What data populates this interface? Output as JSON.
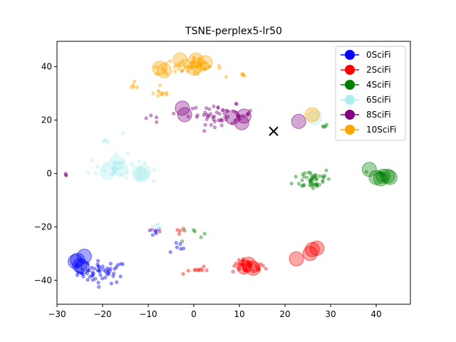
{
  "chart_data": {
    "type": "scatter",
    "title": "TSNE-perplex5-lr50",
    "xlabel": "",
    "ylabel": "",
    "xlim": [
      -30,
      47.5
    ],
    "ylim": [
      -49,
      49.5
    ],
    "xticks": [
      -30,
      -20,
      -10,
      0,
      10,
      20,
      30,
      40
    ],
    "yticks": [
      -40,
      -20,
      0,
      20,
      40
    ],
    "grid": false,
    "legend_position": "top-right",
    "series": [
      {
        "name": "0SciFi",
        "color": "#0000ff",
        "clusters": [
          {
            "center": [
              -20,
              -37
            ],
            "spread": [
              4.5,
              3.5
            ],
            "count": 55
          },
          {
            "center": [
              -9,
              -22
            ],
            "spread": [
              1.5,
              1.2
            ],
            "count": 6
          },
          {
            "center": [
              -4,
              -28
            ],
            "spread": [
              2,
              2
            ],
            "count": 6
          }
        ],
        "big_points": [
          [
            -26,
            -33
          ],
          [
            -25,
            -34.5
          ],
          [
            -24,
            -31
          ],
          [
            -24.5,
            -35
          ],
          [
            -25.5,
            -32.5
          ]
        ]
      },
      {
        "name": "2SciFi",
        "color": "#ff0000",
        "clusters": [
          {
            "center": [
              12,
              -35
            ],
            "spread": [
              3,
              2
            ],
            "count": 45
          },
          {
            "center": [
              0,
              -36
            ],
            "spread": [
              2.5,
              2
            ],
            "count": 10
          },
          {
            "center": [
              -5,
              -22
            ],
            "spread": [
              3,
              1.5
            ],
            "count": 6
          }
        ],
        "big_points": [
          [
            12,
            -34
          ],
          [
            11,
            -35
          ],
          [
            13,
            -35.5
          ],
          [
            26,
            -28.5
          ],
          [
            25.5,
            -30
          ],
          [
            27,
            -28
          ],
          [
            22.5,
            -32
          ]
        ]
      },
      {
        "name": "4SciFi",
        "color": "#008000",
        "clusters": [
          {
            "center": [
              26,
              -2
            ],
            "spread": [
              3.5,
              3.5
            ],
            "count": 45
          },
          {
            "center": [
              41,
              -0.5
            ],
            "spread": [
              1.5,
              1.5
            ],
            "count": 8
          },
          {
            "center": [
              29,
              18
            ],
            "spread": [
              0.8,
              0.5
            ],
            "count": 4
          },
          {
            "center": [
              -1,
              -22
            ],
            "spread": [
              2.5,
              2.5
            ],
            "count": 6
          }
        ],
        "big_points": [
          [
            38.5,
            1.5
          ],
          [
            40,
            -1.5
          ],
          [
            41.5,
            -1
          ],
          [
            42.5,
            -1
          ],
          [
            43,
            -1.5
          ],
          [
            41,
            -2
          ]
        ]
      },
      {
        "name": "6SciFi",
        "color": "#afeeee",
        "clusters": [
          {
            "center": [
              -17,
              2
            ],
            "spread": [
              5,
              4
            ],
            "count": 40
          },
          {
            "center": [
              -8,
              -20
            ],
            "spread": [
              2,
              1
            ],
            "count": 5
          },
          {
            "center": [
              -18,
              13
            ],
            "spread": [
              2,
              2
            ],
            "count": 5
          }
        ],
        "big_points": [
          [
            -17,
            4
          ],
          [
            -16,
            1.5
          ],
          [
            -19,
            0.5
          ],
          [
            -12,
            0
          ],
          [
            -11.5,
            -0.5
          ],
          [
            -11,
            0.5
          ],
          [
            26.5,
            21
          ]
        ]
      },
      {
        "name": "8SciFi",
        "color": "#800080",
        "clusters": [
          {
            "center": [
              6,
              22
            ],
            "spread": [
              6,
              3
            ],
            "count": 55
          },
          {
            "center": [
              -28,
              -1
            ],
            "spread": [
              0.3,
              0.8
            ],
            "count": 3
          },
          {
            "center": [
              -9,
              21
            ],
            "spread": [
              1.5,
              2
            ],
            "count": 4
          }
        ],
        "big_points": [
          [
            -2.5,
            24.5
          ],
          [
            -2,
            22
          ],
          [
            8.5,
            21
          ],
          [
            10.5,
            19
          ],
          [
            11,
            21.5
          ],
          [
            23,
            19.5
          ]
        ]
      },
      {
        "name": "10SciFi",
        "color": "#ffa500",
        "clusters": [
          {
            "center": [
              -1,
              40
            ],
            "spread": [
              6,
              2.5
            ],
            "count": 55
          },
          {
            "center": [
              -7,
              30
            ],
            "spread": [
              1.5,
              1.5
            ],
            "count": 10
          },
          {
            "center": [
              -13,
              33
            ],
            "spread": [
              1,
              2
            ],
            "count": 5
          },
          {
            "center": [
              11,
              37
            ],
            "spread": [
              1,
              0.5
            ],
            "count": 4
          }
        ],
        "big_points": [
          [
            -3,
            42.5
          ],
          [
            0.5,
            42.5
          ],
          [
            -7.5,
            39.5
          ],
          [
            -6.5,
            38.5
          ],
          [
            0,
            39.5
          ],
          [
            2.5,
            41.5
          ],
          [
            1,
            40.5
          ],
          [
            26,
            22
          ]
        ]
      }
    ],
    "marker_x": {
      "x": 17.5,
      "y": 15.8,
      "color": "#000000"
    }
  }
}
